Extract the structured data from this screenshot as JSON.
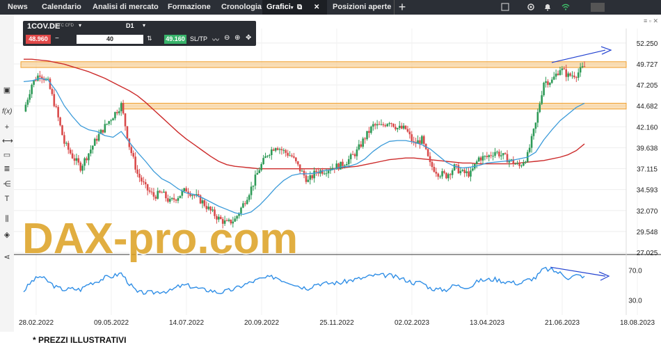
{
  "nav": {
    "tabs": [
      {
        "label": "News"
      },
      {
        "label": "Calendario"
      },
      {
        "label": "Analisi di mercato"
      },
      {
        "label": "Formazione"
      },
      {
        "label": "Cronologia"
      },
      {
        "label": "Grafici"
      },
      {
        "label": "Posizioni aperte"
      }
    ],
    "plus_label": "+"
  },
  "toolbar": {
    "symbol": "1COV.DE",
    "symbol_sub": "STC CFD",
    "timeframe": "D1",
    "sell_price": "48.960",
    "minus_label": "−",
    "quantity": "40",
    "buy_price": "49.160",
    "sltp_label": "SL/TP"
  },
  "watermark": "DAX-pro.com",
  "footnote": "* PREZZI ILLUSTRATIVI",
  "colors": {
    "candle_up": "#2e9a57",
    "candle_down": "#d94a4a",
    "ma_fast": "#3a9ad9",
    "ma_slow": "#cc2a2a",
    "zone": "#f6c37a",
    "rsi": "#2f8ee6",
    "annotation": "#2040d0"
  },
  "chart_data": {
    "type": "candlestick",
    "symbol": "1COV.DE",
    "price_axis": {
      "ticks": [
        "52.250",
        "49.727",
        "47.205",
        "44.682",
        "42.160",
        "39.638",
        "37.115",
        "34.593",
        "32.070",
        "29.548",
        "27.025"
      ],
      "ylim": [
        27.025,
        54.0
      ]
    },
    "rsi_axis": {
      "ticks": [
        "70.0",
        "30.0"
      ],
      "ylim": [
        10,
        90
      ]
    },
    "x_tick_labels": [
      "28.02.2022",
      "09.05.2022",
      "14.07.2022",
      "20.09.2022",
      "25.11.2022",
      "02.02.2023",
      "13.04.2023",
      "21.06.2023",
      "18.08.2023"
    ],
    "resistance_zones": [
      [
        49.3,
        50.0
      ],
      [
        44.3,
        45.0
      ]
    ],
    "close_series": [
      44.0,
      47.3,
      48.6,
      47.5,
      44.2,
      40.2,
      38.6,
      37.3,
      39.0,
      40.8,
      42.2,
      43.5,
      44.8,
      39.9,
      36.5,
      34.8,
      33.8,
      34.2,
      33.1,
      33.8,
      34.6,
      33.9,
      33.1,
      32.0,
      31.1,
      30.5,
      31.0,
      32.8,
      34.8,
      37.1,
      38.9,
      39.9,
      39.2,
      38.6,
      37.0,
      35.6,
      36.8,
      36.9,
      37.3,
      37.5,
      38.2,
      39.2,
      40.9,
      42.3,
      42.2,
      42.9,
      42.0,
      41.9,
      40.1,
      40.6,
      37.6,
      36.6,
      36.3,
      37.3,
      36.6,
      36.5,
      38.4,
      38.5,
      39.2,
      38.6,
      38.0,
      37.4,
      38.7,
      42.5,
      47.6,
      47.7,
      49.2,
      48.3,
      48.5,
      49.4
    ],
    "ma_fast": [
      47.6,
      47.7,
      48.0,
      47.8,
      46.5,
      44.7,
      43.4,
      42.3,
      41.8,
      41.6,
      41.1,
      40.9,
      41.6,
      40.3,
      39.1,
      38.0,
      36.8,
      35.9,
      35.4,
      34.7,
      34.2,
      34.0,
      33.6,
      33.1,
      32.6,
      32.2,
      31.8,
      31.6,
      31.9,
      32.7,
      33.7,
      34.8,
      35.7,
      36.3,
      36.5,
      36.5,
      36.6,
      36.9,
      37.0,
      37.3,
      37.4,
      37.7,
      38.3,
      39.2,
      39.9,
      40.4,
      40.5,
      40.5,
      40.3,
      40.0,
      39.5,
      38.7,
      37.9,
      37.4,
      37.2,
      37.3,
      37.5,
      37.8,
      37.9,
      38.0,
      38.1,
      38.3,
      38.5,
      39.1,
      40.6,
      41.8,
      42.9,
      43.7,
      44.5,
      45.0
    ],
    "ma_slow": [
      50.3,
      50.3,
      50.2,
      50.1,
      49.9,
      49.7,
      49.4,
      49.1,
      48.8,
      48.4,
      48.0,
      47.5,
      47.0,
      46.5,
      45.9,
      45.1,
      44.2,
      43.3,
      42.4,
      41.5,
      40.7,
      40.0,
      39.3,
      38.6,
      38.0,
      37.6,
      37.4,
      37.3,
      37.2,
      37.1,
      37.1,
      37.1,
      37.1,
      37.1,
      37.1,
      37.1,
      37.1,
      37.1,
      37.1,
      37.2,
      37.3,
      37.4,
      37.6,
      37.8,
      38.0,
      38.2,
      38.3,
      38.4,
      38.4,
      38.3,
      38.2,
      38.1,
      38.0,
      37.9,
      37.8,
      37.8,
      37.7,
      37.7,
      37.7,
      37.7,
      37.7,
      37.8,
      37.9,
      38.0,
      38.1,
      38.3,
      38.5,
      38.8,
      39.3,
      40.1
    ],
    "rsi": [
      42,
      55,
      62,
      55,
      47,
      44,
      45,
      44,
      52,
      55,
      60,
      62,
      66,
      52,
      40,
      40,
      40,
      42,
      42,
      48,
      50,
      47,
      44,
      43,
      40,
      42,
      45,
      50,
      54,
      58,
      60,
      61,
      56,
      53,
      48,
      46,
      52,
      52,
      53,
      53,
      56,
      58,
      60,
      63,
      63,
      63,
      60,
      57,
      53,
      54,
      46,
      44,
      44,
      50,
      48,
      48,
      56,
      57,
      58,
      55,
      54,
      52,
      57,
      60,
      72,
      70,
      66,
      60,
      63,
      62
    ],
    "annotations": [
      {
        "type": "arrow",
        "target": "price",
        "desc": "trend line upward"
      },
      {
        "type": "arrow",
        "target": "rsi",
        "desc": "trend line downward"
      }
    ]
  }
}
